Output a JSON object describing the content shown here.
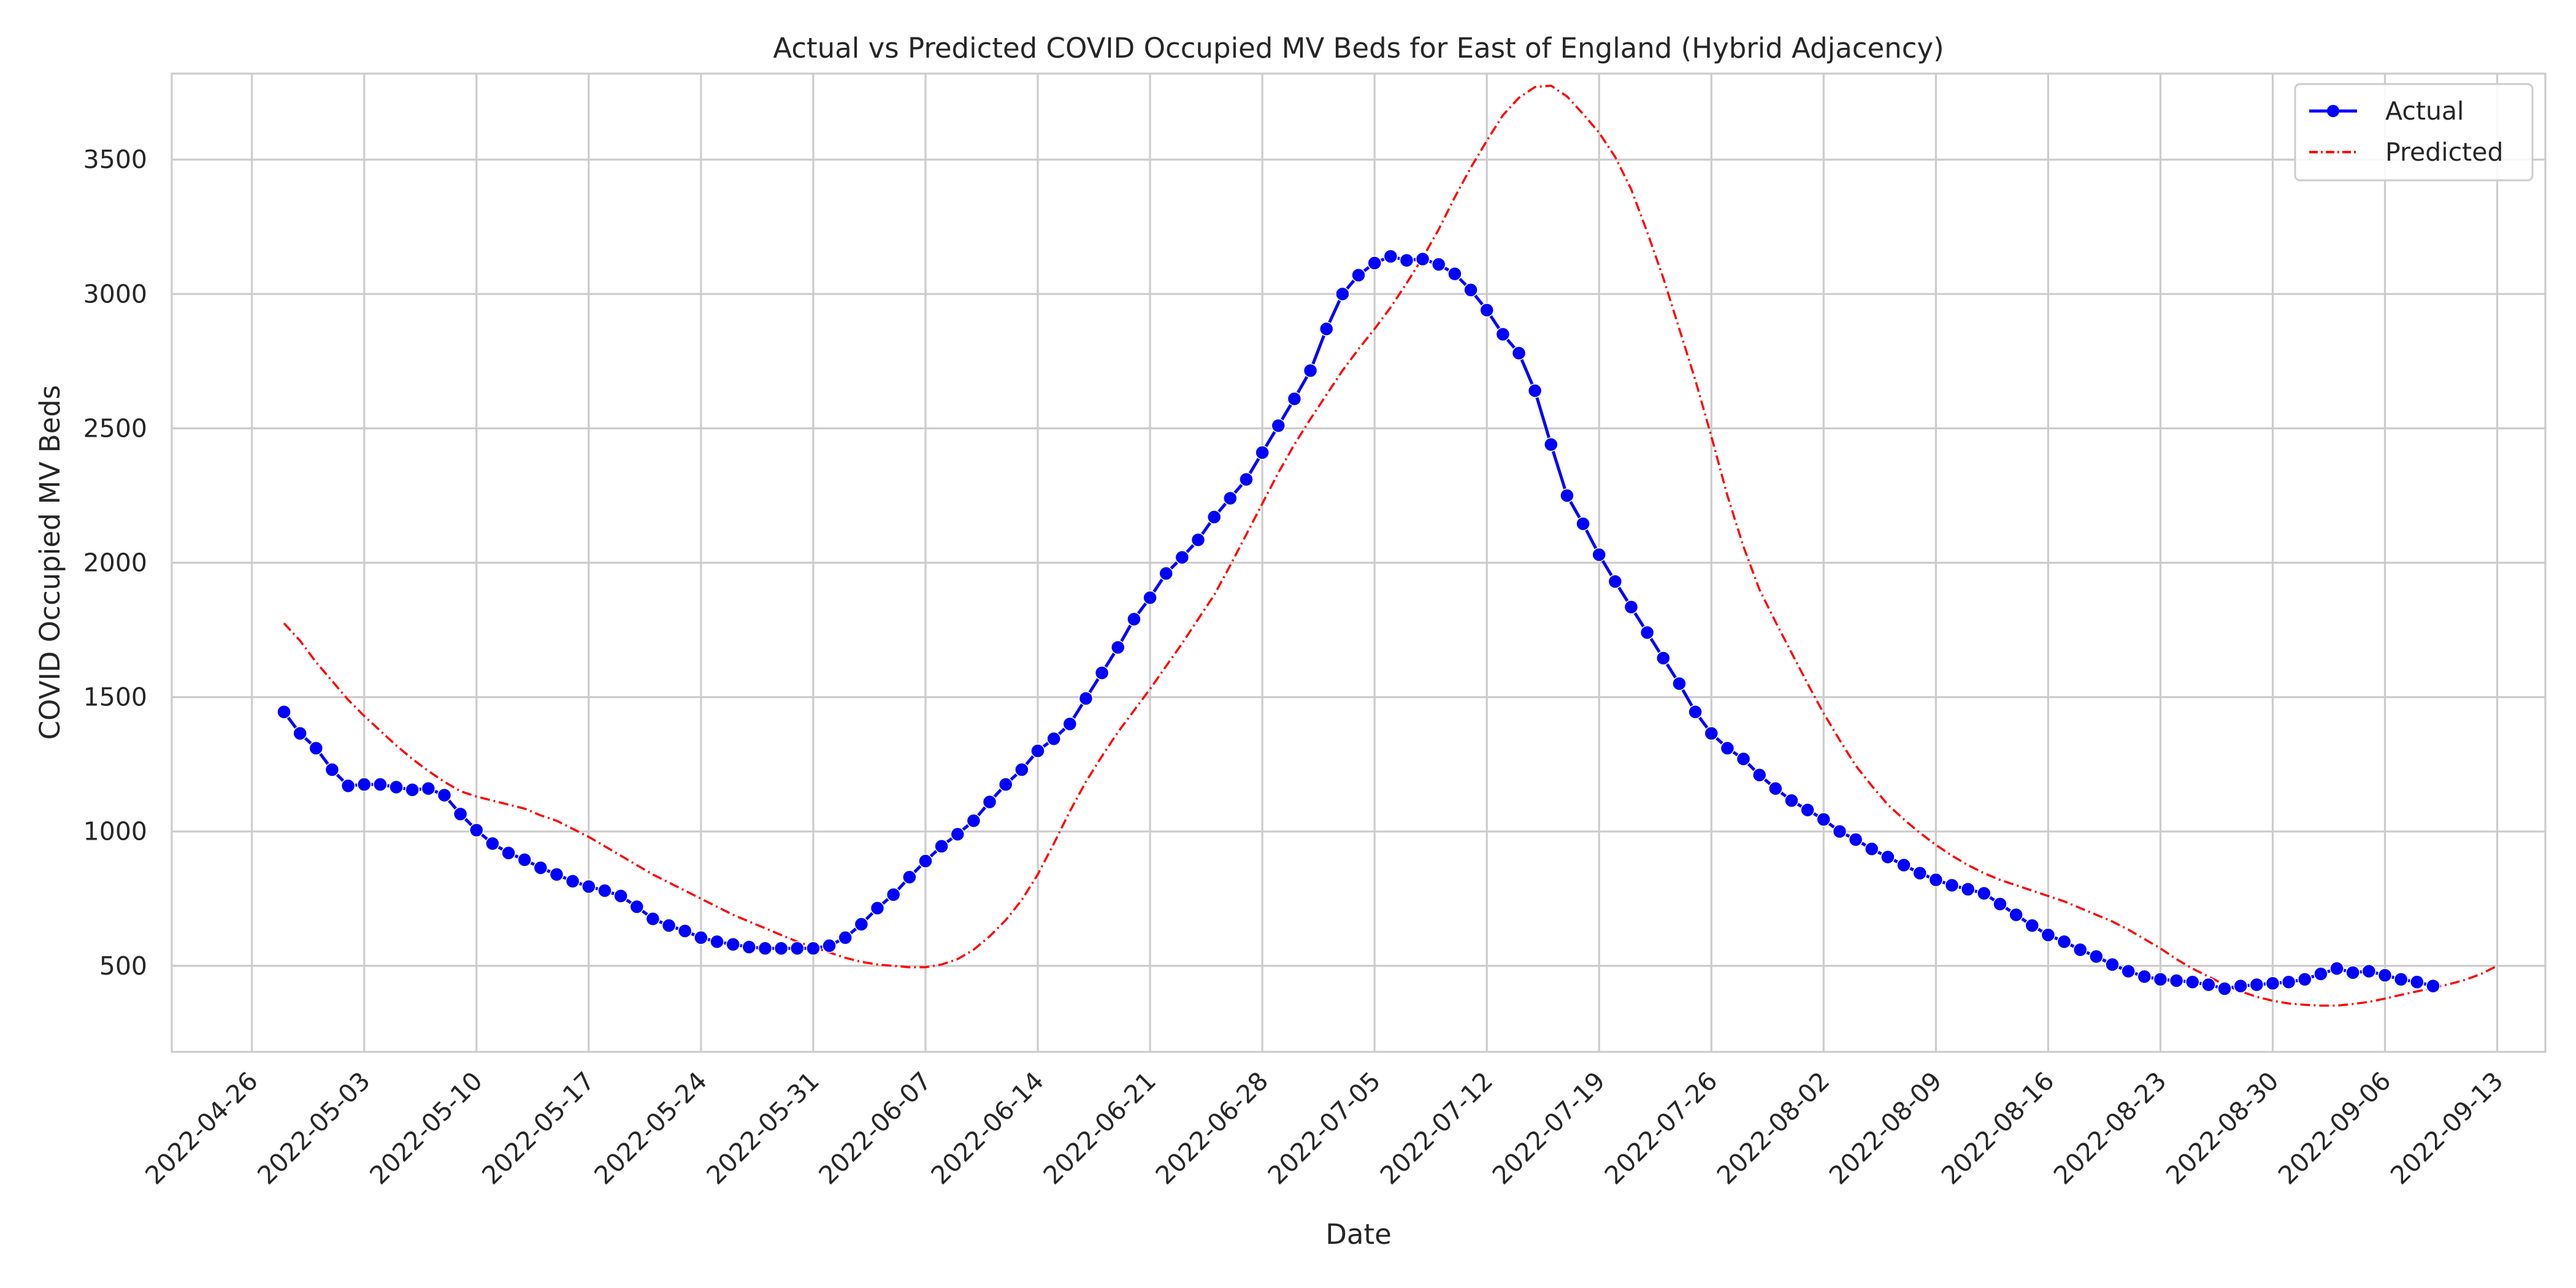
{
  "chart_data": {
    "type": "line",
    "title": "Actual vs Predicted COVID Occupied MV Beds for East of England (Hybrid Adjacency)",
    "xlabel": "Date",
    "ylabel": "COVID Occupied MV Beds",
    "x_range": [
      "2022-04-21",
      "2022-09-16"
    ],
    "ylim": [
      180,
      3820
    ],
    "x_ticks": [
      "2022-04-26",
      "2022-05-03",
      "2022-05-10",
      "2022-05-17",
      "2022-05-24",
      "2022-05-31",
      "2022-06-07",
      "2022-06-14",
      "2022-06-21",
      "2022-06-28",
      "2022-07-05",
      "2022-07-12",
      "2022-07-19",
      "2022-07-26",
      "2022-08-02",
      "2022-08-09",
      "2022-08-16",
      "2022-08-23",
      "2022-08-30",
      "2022-09-06",
      "2022-09-13"
    ],
    "y_ticks": [
      500,
      1000,
      1500,
      2000,
      2500,
      3000,
      3500
    ],
    "grid": true,
    "legend_position": "top-right",
    "series": [
      {
        "name": "Actual",
        "color": "#0000ff",
        "style": "solid-with-markers",
        "start_date": "2022-04-28",
        "values": [
          1445,
          1365,
          1310,
          1230,
          1170,
          1175,
          1175,
          1165,
          1155,
          1160,
          1135,
          1065,
          1005,
          955,
          920,
          895,
          865,
          840,
          815,
          795,
          780,
          760,
          720,
          675,
          650,
          630,
          605,
          590,
          580,
          570,
          565,
          565,
          565,
          565,
          575,
          605,
          655,
          715,
          765,
          830,
          890,
          945,
          990,
          1040,
          1110,
          1175,
          1230,
          1300,
          1345,
          1400,
          1495,
          1590,
          1685,
          1790,
          1870,
          1960,
          2020,
          2085,
          2170,
          2240,
          2310,
          2410,
          2510,
          2610,
          2715,
          2870,
          3000,
          3070,
          3115,
          3140,
          3125,
          3130,
          3110,
          3075,
          3015,
          2940,
          2850,
          2780,
          2640,
          2440,
          2250,
          2145,
          2030,
          1930,
          1835,
          1740,
          1645,
          1550,
          1445,
          1365,
          1310,
          1270,
          1210,
          1160,
          1115,
          1080,
          1045,
          1000,
          970,
          935,
          905,
          875,
          845,
          820,
          800,
          785,
          770,
          730,
          690,
          650,
          615,
          590,
          560,
          535,
          505,
          480,
          460,
          450,
          445,
          440,
          430,
          415,
          425,
          430,
          435,
          440,
          450,
          470,
          490,
          475,
          480,
          465,
          450,
          440,
          425
        ]
      },
      {
        "name": "Predicted",
        "color": "#ff0000",
        "style": "dash-dot",
        "start_date": "2022-04-28",
        "values": [
          1775,
          1710,
          1630,
          1560,
          1490,
          1430,
          1375,
          1320,
          1270,
          1225,
          1185,
          1150,
          1130,
          1115,
          1100,
          1085,
          1060,
          1040,
          1010,
          980,
          945,
          910,
          875,
          840,
          810,
          780,
          750,
          720,
          690,
          665,
          640,
          615,
          590,
          570,
          550,
          530,
          515,
          505,
          500,
          495,
          495,
          505,
          525,
          560,
          610,
          670,
          745,
          840,
          955,
          1075,
          1185,
          1280,
          1370,
          1450,
          1530,
          1615,
          1700,
          1790,
          1880,
          1990,
          2105,
          2220,
          2335,
          2440,
          2535,
          2625,
          2715,
          2795,
          2870,
          2950,
          3040,
          3135,
          3240,
          3360,
          3470,
          3570,
          3665,
          3730,
          3770,
          3775,
          3735,
          3670,
          3600,
          3510,
          3390,
          3230,
          3060,
          2870,
          2680,
          2470,
          2250,
          2060,
          1900,
          1780,
          1665,
          1550,
          1440,
          1340,
          1245,
          1170,
          1100,
          1045,
          995,
          950,
          910,
          875,
          845,
          820,
          800,
          780,
          760,
          740,
          715,
          690,
          665,
          635,
          600,
          565,
          525,
          490,
          460,
          430,
          405,
          385,
          370,
          360,
          355,
          352,
          352,
          358,
          366,
          378,
          392,
          405,
          418,
          432,
          448,
          470,
          500
        ]
      }
    ]
  }
}
